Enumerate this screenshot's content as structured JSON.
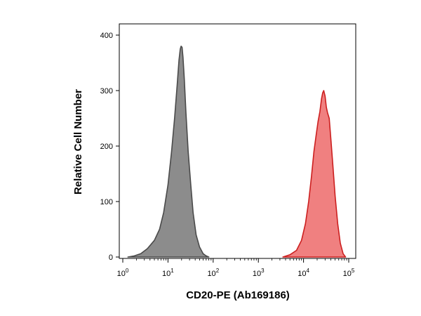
{
  "chart_data": {
    "type": "area",
    "title": "",
    "xlabel": "CD20-PE (Ab169186)",
    "ylabel": "Relative Cell Number",
    "xscale": "log",
    "xlim": [
      1,
      100000
    ],
    "ylim": [
      0,
      400
    ],
    "x_ticks": [
      {
        "base": "10",
        "exp": "0",
        "value": 1
      },
      {
        "base": "10",
        "exp": "1",
        "value": 10
      },
      {
        "base": "10",
        "exp": "2",
        "value": 100
      },
      {
        "base": "10",
        "exp": "3",
        "value": 1000
      },
      {
        "base": "10",
        "exp": "4",
        "value": 10000
      },
      {
        "base": "10",
        "exp": "5",
        "value": 100000
      }
    ],
    "y_ticks": [
      {
        "label": "0",
        "value": 0
      },
      {
        "label": "100",
        "value": 100
      },
      {
        "label": "200",
        "value": 200
      },
      {
        "label": "300",
        "value": 300
      },
      {
        "label": "400",
        "value": 400
      }
    ],
    "grid": false,
    "legend": "none",
    "series": [
      {
        "color": "#8c8c8c",
        "stroke": "#4a4a4a",
        "x": [
          1.3,
          1.8,
          2.5,
          3.5,
          5,
          6.5,
          8,
          10,
          12,
          14,
          16,
          17.5,
          18.7,
          19.5,
          20.5,
          21.5,
          23,
          25,
          28,
          32,
          36,
          42,
          50,
          60,
          70,
          80
        ],
        "y": [
          0,
          2,
          6,
          15,
          30,
          50,
          80,
          130,
          190,
          250,
          310,
          355,
          375,
          380,
          378,
          360,
          320,
          260,
          190,
          130,
          80,
          40,
          18,
          6,
          2,
          0
        ]
      },
      {
        "color": "#f08080",
        "stroke": "#cc1f1f",
        "x": [
          3500,
          5000,
          7000,
          9000,
          11000,
          13000,
          15000,
          17000,
          19000,
          21000,
          23000,
          25000,
          26500,
          28000,
          30000,
          32000,
          34000,
          37000,
          40000,
          45000,
          50000,
          57000,
          65000,
          75000,
          85000
        ],
        "y": [
          0,
          4,
          12,
          30,
          60,
          100,
          145,
          190,
          220,
          245,
          262,
          285,
          296,
          300,
          290,
          270,
          260,
          250,
          215,
          160,
          110,
          60,
          25,
          6,
          0
        ]
      }
    ]
  }
}
